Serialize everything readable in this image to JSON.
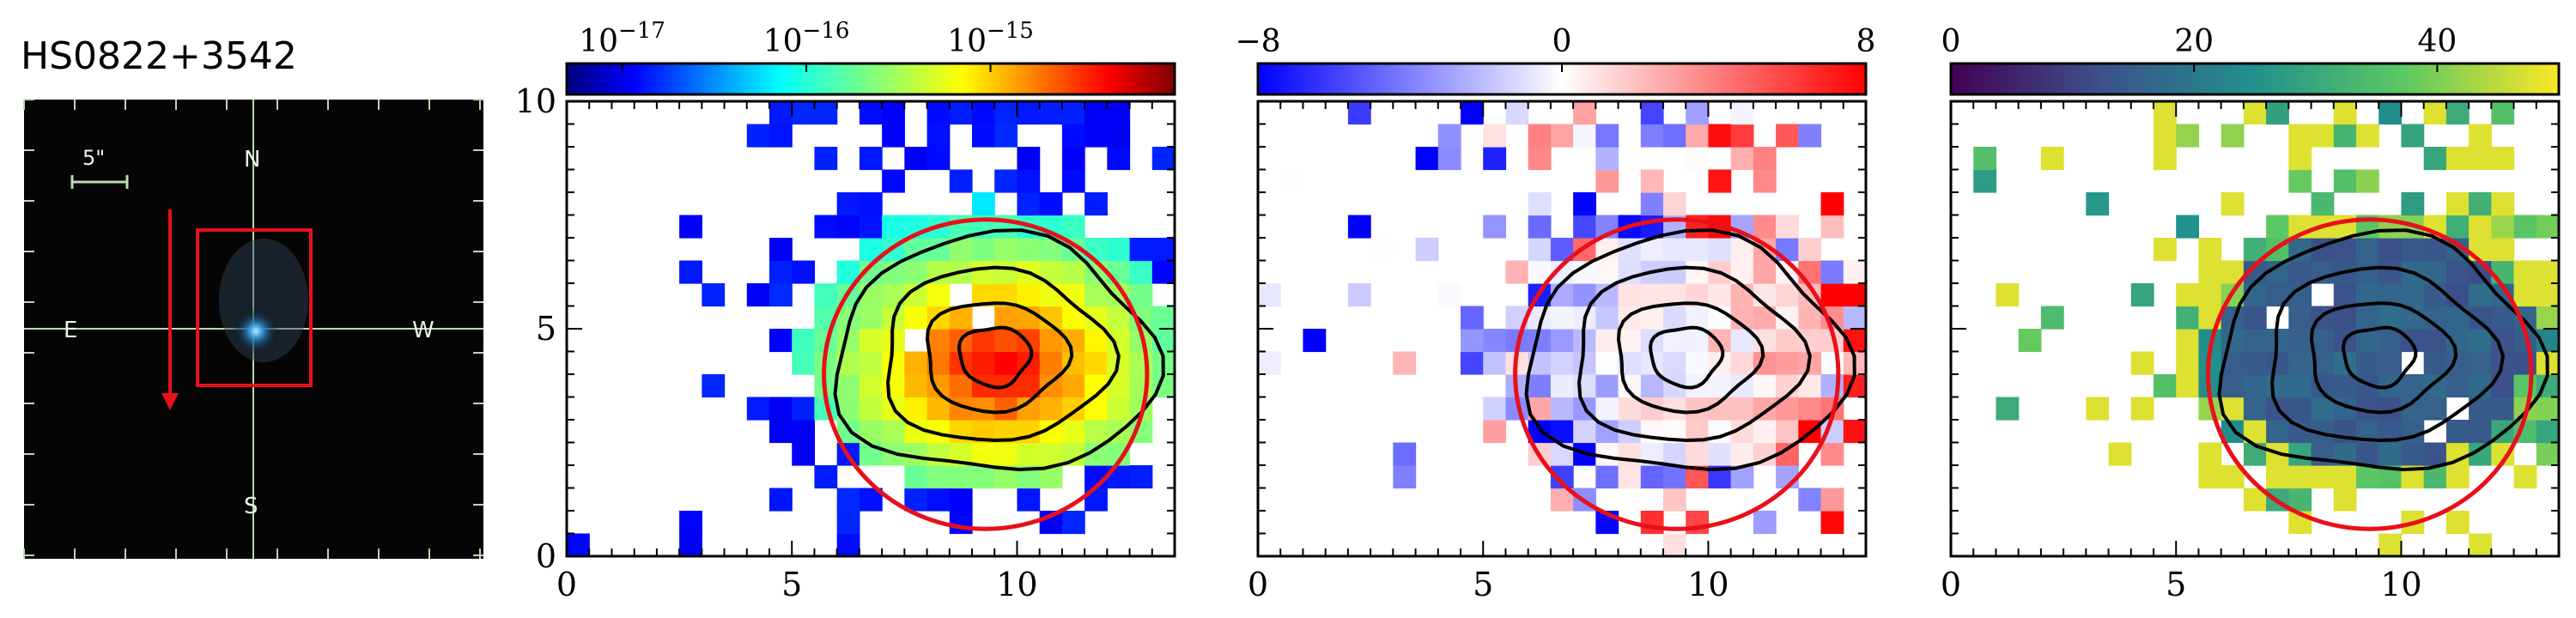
{
  "figure": {
    "object_name": "HS0822+3542",
    "finder": {
      "scale_label": "5\"",
      "north": "N",
      "south": "S",
      "east": "E",
      "west": "W"
    },
    "colors": {
      "ellipse": "#e8101a",
      "contour": "#000000",
      "finder_bg": "#050505",
      "finder_grid": "#b9d9b0"
    }
  },
  "chart_data": [
    {
      "type": "heatmap",
      "panel": "flux",
      "colormap": "jet",
      "colorbar_scale": "log",
      "colorbar_ticks": [
        "10^-17",
        "10^-16",
        "10^-15"
      ],
      "colorbar_tick_values": [
        1e-17,
        1e-16,
        1e-15
      ],
      "colorbar_range": [
        5e-18,
        1e-14
      ],
      "xlim": [
        0,
        13.5
      ],
      "ylim": [
        0,
        10
      ],
      "x_ticks": [
        0,
        5,
        10
      ],
      "y_ticks": [
        0,
        5,
        10
      ],
      "contours": true,
      "peak": [
        9.6,
        4.2
      ],
      "ellipse": {
        "center": [
          9.3,
          4.0
        ],
        "semi_axes": [
          6.9,
          3.4
        ]
      }
    },
    {
      "type": "heatmap",
      "panel": "residual",
      "colormap": "bwr",
      "colorbar_ticks": [
        "−8",
        "0",
        "8"
      ],
      "colorbar_tick_values": [
        -8,
        0,
        8
      ],
      "colorbar_range": [
        -8,
        8
      ],
      "xlim": [
        0,
        13.5
      ],
      "ylim": [
        0,
        10
      ],
      "x_ticks": [
        0,
        5,
        10
      ],
      "y_ticks": [],
      "contours": true,
      "ellipse": {
        "center": [
          9.3,
          4.0
        ],
        "semi_axes": [
          6.9,
          3.4
        ]
      }
    },
    {
      "type": "heatmap",
      "panel": "ratio",
      "colormap": "viridis",
      "colorbar_ticks": [
        "0",
        "20",
        "40"
      ],
      "colorbar_tick_values": [
        0,
        20,
        40
      ],
      "colorbar_range": [
        0,
        50
      ],
      "xlim": [
        0,
        13.5
      ],
      "ylim": [
        0,
        10
      ],
      "x_ticks": [
        0,
        5,
        10
      ],
      "y_ticks": [],
      "contours": true,
      "ellipse": {
        "center": [
          9.3,
          4.0
        ],
        "semi_axes": [
          6.9,
          3.4
        ]
      }
    }
  ]
}
